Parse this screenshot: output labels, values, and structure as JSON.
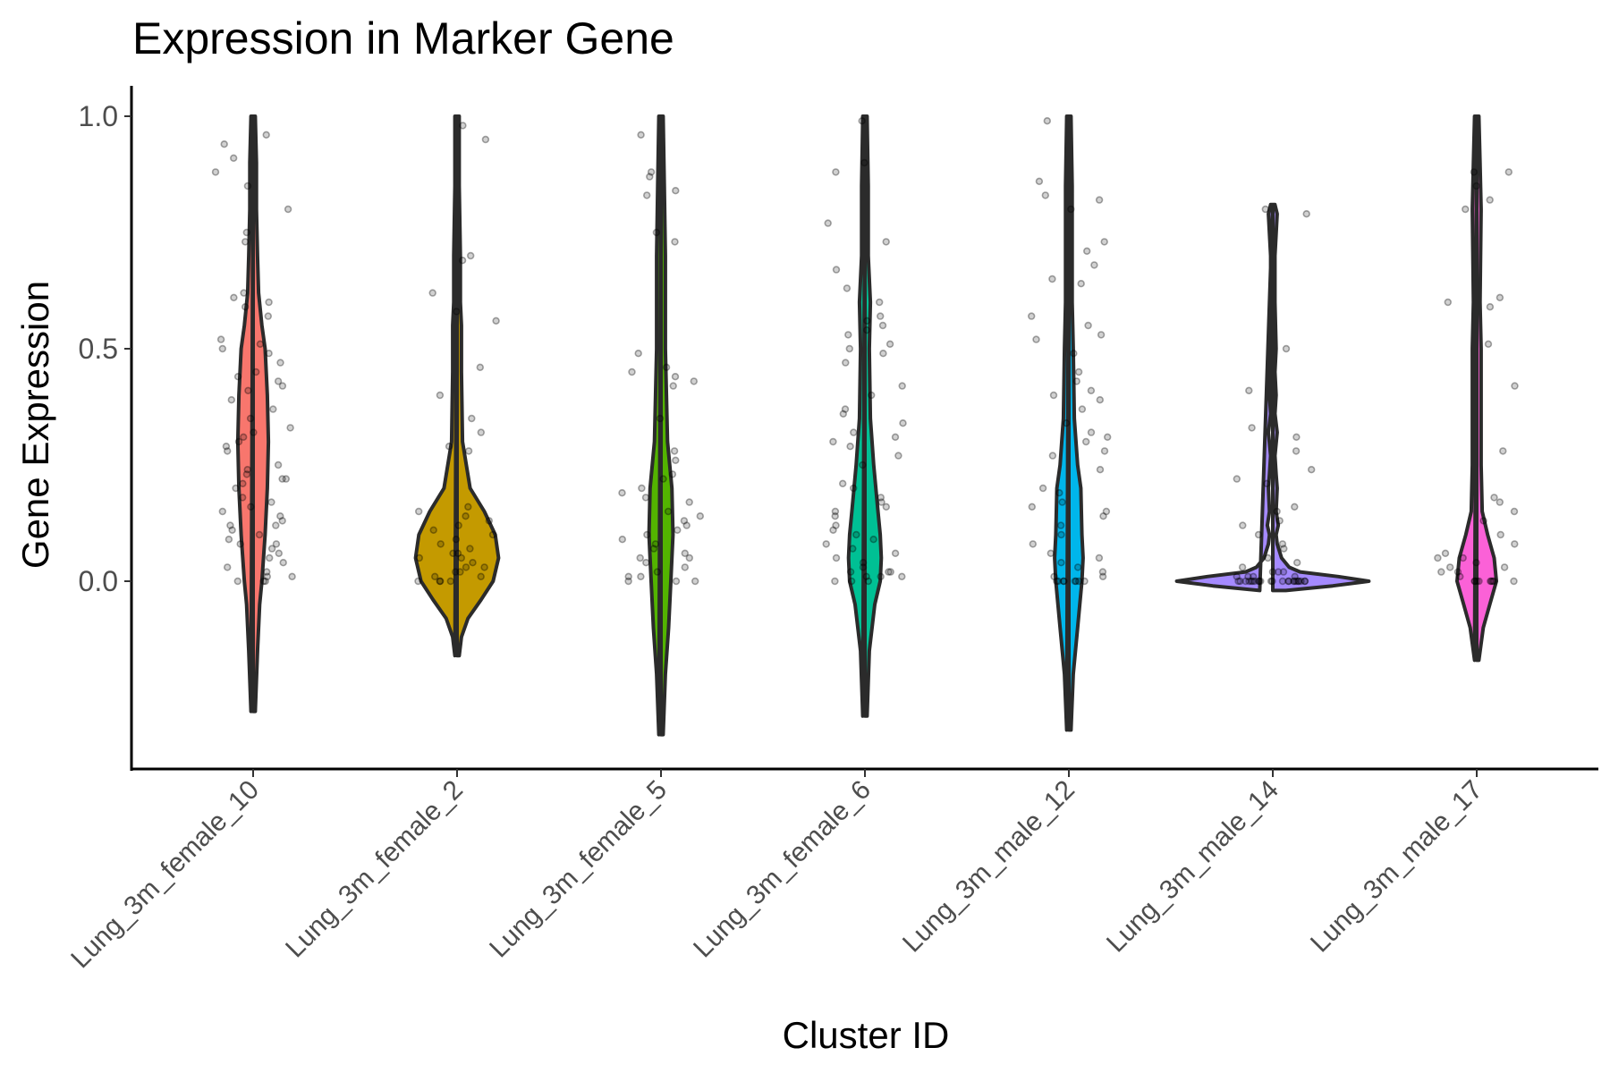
{
  "chart_data": {
    "type": "violin",
    "title": "Expression in Marker Gene",
    "xlabel": "Cluster ID",
    "ylabel": "Gene Expression",
    "ylim": [
      -0.4,
      1.05
    ],
    "yticks": [
      0.0,
      0.5,
      1.0
    ],
    "ytick_labels": [
      "0.0",
      "0.5",
      "1.0"
    ],
    "grid": false,
    "legend": "none",
    "categories": [
      "Lung_3m_female_10",
      "Lung_3m_female_2",
      "Lung_3m_female_5",
      "Lung_3m_female_6",
      "Lung_3m_male_12",
      "Lung_3m_male_14",
      "Lung_3m_male_17"
    ],
    "colors": [
      "#F8766D",
      "#C49A00",
      "#53B400",
      "#00C094",
      "#00B6EB",
      "#A58AFF",
      "#FB61D7"
    ],
    "violins": [
      {
        "min": -0.28,
        "max": 1.0,
        "density": [
          [
            -0.28,
            0.002
          ],
          [
            -0.15,
            0.004
          ],
          [
            -0.05,
            0.006
          ],
          [
            0.0,
            0.008
          ],
          [
            0.1,
            0.011
          ],
          [
            0.2,
            0.013
          ],
          [
            0.3,
            0.014
          ],
          [
            0.4,
            0.013
          ],
          [
            0.5,
            0.011
          ],
          [
            0.55,
            0.008
          ],
          [
            0.62,
            0.005
          ],
          [
            0.7,
            0.004
          ],
          [
            0.8,
            0.003
          ],
          [
            0.9,
            0.003
          ],
          [
            1.0,
            0.002
          ]
        ]
      },
      {
        "min": -0.16,
        "max": 1.0,
        "density": [
          [
            -0.16,
            0.002
          ],
          [
            -0.12,
            0.004
          ],
          [
            -0.08,
            0.01
          ],
          [
            -0.04,
            0.022
          ],
          [
            0.0,
            0.033
          ],
          [
            0.05,
            0.038
          ],
          [
            0.1,
            0.035
          ],
          [
            0.15,
            0.025
          ],
          [
            0.2,
            0.012
          ],
          [
            0.3,
            0.005
          ],
          [
            0.45,
            0.004
          ],
          [
            0.55,
            0.004
          ],
          [
            0.6,
            0.003
          ],
          [
            0.7,
            0.003
          ],
          [
            0.85,
            0.002
          ],
          [
            1.0,
            0.002
          ]
        ]
      },
      {
        "min": -0.33,
        "max": 1.0,
        "density": [
          [
            -0.33,
            0.002
          ],
          [
            -0.2,
            0.004
          ],
          [
            -0.1,
            0.007
          ],
          [
            0.0,
            0.009
          ],
          [
            0.1,
            0.011
          ],
          [
            0.2,
            0.01
          ],
          [
            0.3,
            0.006
          ],
          [
            0.4,
            0.005
          ],
          [
            0.5,
            0.004
          ],
          [
            0.7,
            0.004
          ],
          [
            0.85,
            0.003
          ],
          [
            1.0,
            0.002
          ]
        ]
      },
      {
        "min": -0.29,
        "max": 1.0,
        "density": [
          [
            -0.29,
            0.002
          ],
          [
            -0.15,
            0.004
          ],
          [
            -0.05,
            0.009
          ],
          [
            0.0,
            0.014
          ],
          [
            0.05,
            0.015
          ],
          [
            0.1,
            0.014
          ],
          [
            0.15,
            0.012
          ],
          [
            0.25,
            0.008
          ],
          [
            0.35,
            0.005
          ],
          [
            0.5,
            0.004
          ],
          [
            0.6,
            0.005
          ],
          [
            0.7,
            0.003
          ],
          [
            0.85,
            0.003
          ],
          [
            1.0,
            0.002
          ]
        ]
      },
      {
        "min": -0.32,
        "max": 1.0,
        "density": [
          [
            -0.32,
            0.002
          ],
          [
            -0.2,
            0.004
          ],
          [
            -0.1,
            0.008
          ],
          [
            0.0,
            0.012
          ],
          [
            0.05,
            0.013
          ],
          [
            0.1,
            0.012
          ],
          [
            0.2,
            0.011
          ],
          [
            0.25,
            0.008
          ],
          [
            0.35,
            0.005
          ],
          [
            0.5,
            0.004
          ],
          [
            0.6,
            0.003
          ],
          [
            0.75,
            0.003
          ],
          [
            0.85,
            0.003
          ],
          [
            1.0,
            0.002
          ]
        ]
      },
      {
        "min": -0.02,
        "max": 0.81,
        "density": [
          [
            -0.02,
            0.012
          ],
          [
            -0.01,
            0.055
          ],
          [
            0.0,
            0.088
          ],
          [
            0.01,
            0.06
          ],
          [
            0.02,
            0.025
          ],
          [
            0.03,
            0.015
          ],
          [
            0.05,
            0.008
          ],
          [
            0.08,
            0.004
          ],
          [
            0.1,
            0.003
          ],
          [
            0.12,
            0.005
          ],
          [
            0.15,
            0.003
          ],
          [
            0.2,
            0.004
          ],
          [
            0.23,
            0.003
          ],
          [
            0.27,
            0.002
          ],
          [
            0.32,
            0.004
          ],
          [
            0.36,
            0.002
          ],
          [
            0.4,
            0.003
          ],
          [
            0.45,
            0.002
          ],
          [
            0.5,
            0.003
          ],
          [
            0.6,
            0.002
          ],
          [
            0.7,
            0.002
          ],
          [
            0.79,
            0.004
          ],
          [
            0.81,
            0.002
          ]
        ]
      },
      {
        "min": -0.17,
        "max": 1.0,
        "density": [
          [
            -0.17,
            0.002
          ],
          [
            -0.1,
            0.006
          ],
          [
            -0.05,
            0.012
          ],
          [
            0.0,
            0.018
          ],
          [
            0.05,
            0.016
          ],
          [
            0.1,
            0.01
          ],
          [
            0.15,
            0.005
          ],
          [
            0.25,
            0.004
          ],
          [
            0.4,
            0.004
          ],
          [
            0.5,
            0.004
          ],
          [
            0.6,
            0.003
          ],
          [
            0.8,
            0.004
          ],
          [
            0.9,
            0.003
          ],
          [
            1.0,
            0.002
          ]
        ]
      }
    ],
    "points": [
      [
        0.0,
        0.0,
        0.0,
        0.01,
        0.01,
        0.02,
        0.03,
        0.04,
        0.05,
        0.06,
        0.07,
        0.08,
        0.08,
        0.09,
        0.1,
        0.11,
        0.12,
        0.12,
        0.13,
        0.14,
        0.15,
        0.16,
        0.17,
        0.18,
        0.2,
        0.21,
        0.22,
        0.22,
        0.23,
        0.24,
        0.25,
        0.28,
        0.29,
        0.3,
        0.31,
        0.32,
        0.33,
        0.35,
        0.37,
        0.39,
        0.41,
        0.42,
        0.43,
        0.44,
        0.45,
        0.47,
        0.49,
        0.5,
        0.51,
        0.52,
        0.57,
        0.59,
        0.6,
        0.61,
        0.62,
        0.73,
        0.75,
        0.8,
        0.85,
        0.88,
        0.91,
        0.94,
        0.96
      ],
      [
        0.0,
        0.0,
        0.0,
        0.0,
        0.01,
        0.01,
        0.02,
        0.02,
        0.03,
        0.03,
        0.04,
        0.05,
        0.05,
        0.06,
        0.06,
        0.07,
        0.08,
        0.09,
        0.1,
        0.11,
        0.12,
        0.13,
        0.14,
        0.15,
        0.16,
        0.28,
        0.29,
        0.32,
        0.35,
        0.4,
        0.46,
        0.56,
        0.58,
        0.62,
        0.69,
        0.7,
        0.95,
        0.98
      ],
      [
        0.0,
        0.0,
        0.0,
        0.01,
        0.01,
        0.02,
        0.03,
        0.04,
        0.05,
        0.05,
        0.06,
        0.07,
        0.08,
        0.09,
        0.1,
        0.11,
        0.12,
        0.13,
        0.14,
        0.15,
        0.17,
        0.18,
        0.19,
        0.2,
        0.22,
        0.23,
        0.26,
        0.28,
        0.35,
        0.42,
        0.43,
        0.44,
        0.45,
        0.46,
        0.49,
        0.73,
        0.75,
        0.83,
        0.84,
        0.87,
        0.88,
        0.96
      ],
      [
        0.0,
        0.0,
        0.0,
        0.01,
        0.01,
        0.01,
        0.02,
        0.02,
        0.02,
        0.03,
        0.04,
        0.05,
        0.06,
        0.07,
        0.08,
        0.09,
        0.1,
        0.11,
        0.12,
        0.14,
        0.15,
        0.16,
        0.17,
        0.18,
        0.2,
        0.21,
        0.25,
        0.27,
        0.29,
        0.3,
        0.31,
        0.32,
        0.34,
        0.36,
        0.37,
        0.4,
        0.42,
        0.47,
        0.49,
        0.5,
        0.51,
        0.53,
        0.54,
        0.55,
        0.56,
        0.57,
        0.6,
        0.63,
        0.67,
        0.73,
        0.77,
        0.88,
        0.9,
        0.99
      ],
      [
        0.0,
        0.0,
        0.0,
        0.0,
        0.0,
        0.0,
        0.0,
        0.0,
        0.01,
        0.01,
        0.02,
        0.03,
        0.04,
        0.05,
        0.06,
        0.08,
        0.1,
        0.12,
        0.14,
        0.15,
        0.16,
        0.17,
        0.19,
        0.2,
        0.24,
        0.27,
        0.28,
        0.3,
        0.31,
        0.32,
        0.34,
        0.37,
        0.39,
        0.4,
        0.41,
        0.43,
        0.45,
        0.49,
        0.52,
        0.53,
        0.55,
        0.57,
        0.64,
        0.65,
        0.68,
        0.71,
        0.73,
        0.8,
        0.82,
        0.83,
        0.86,
        0.99
      ],
      [
        0.0,
        0.0,
        0.0,
        0.0,
        0.0,
        0.0,
        0.0,
        0.0,
        0.0,
        0.0,
        0.0,
        0.0,
        0.0,
        0.0,
        0.0,
        0.0,
        0.0,
        0.0,
        0.0,
        0.0,
        0.0,
        0.0,
        0.0,
        0.01,
        0.01,
        0.01,
        0.01,
        0.02,
        0.02,
        0.02,
        0.03,
        0.04,
        0.05,
        0.07,
        0.08,
        0.1,
        0.12,
        0.13,
        0.15,
        0.16,
        0.21,
        0.22,
        0.24,
        0.28,
        0.31,
        0.33,
        0.41,
        0.5,
        0.79,
        0.8
      ],
      [
        0.0,
        0.0,
        0.0,
        0.0,
        0.0,
        0.0,
        0.0,
        0.0,
        0.0,
        0.01,
        0.02,
        0.02,
        0.03,
        0.03,
        0.04,
        0.05,
        0.05,
        0.06,
        0.08,
        0.1,
        0.13,
        0.15,
        0.17,
        0.18,
        0.28,
        0.42,
        0.51,
        0.59,
        0.6,
        0.61,
        0.8,
        0.82,
        0.85,
        0.88,
        0.88
      ]
    ]
  }
}
